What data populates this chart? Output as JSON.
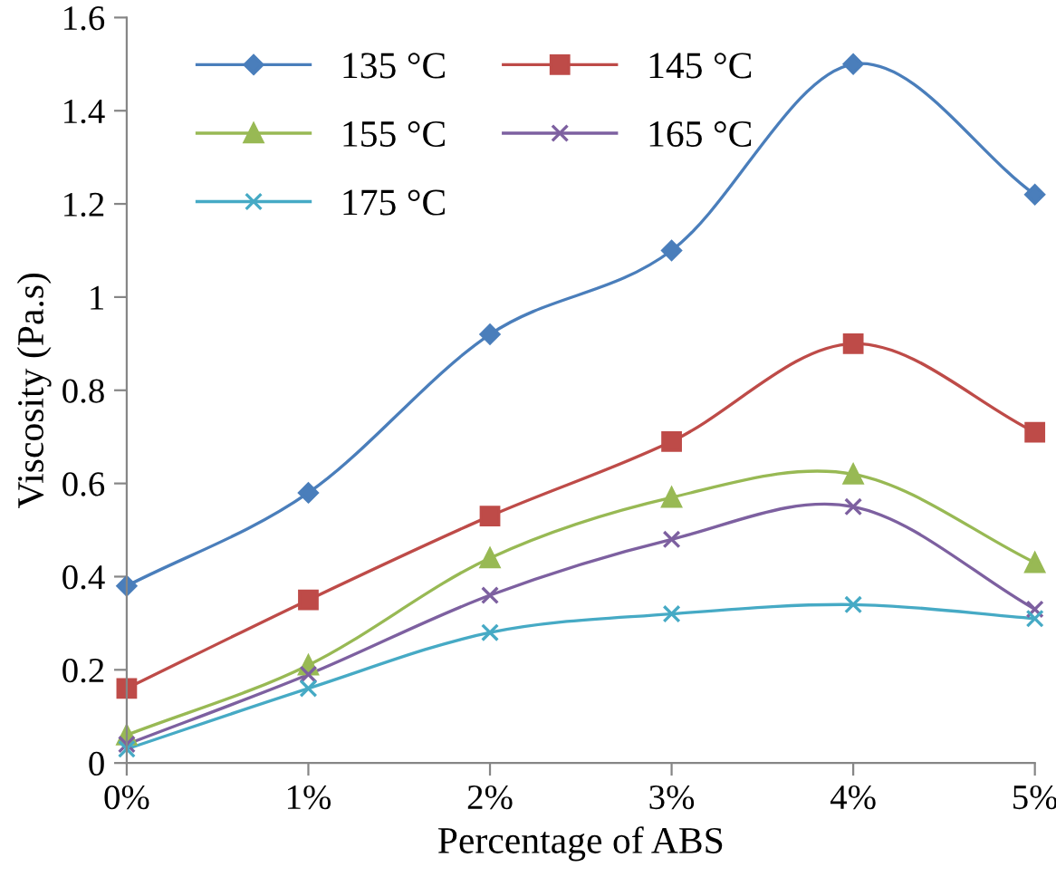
{
  "chart_data": {
    "type": "line",
    "xlabel": "Percentage of ABS",
    "ylabel": "Viscosity (Pa.s)",
    "categories": [
      "0%",
      "1%",
      "2%",
      "3%",
      "4%",
      "5%"
    ],
    "ylim": [
      0,
      1.6
    ],
    "yticks": [
      0,
      0.2,
      0.4,
      0.6,
      0.8,
      1,
      1.2,
      1.4,
      1.6
    ],
    "grid": false,
    "legend": "top left",
    "line_style": "solid",
    "series": [
      {
        "name": "135 °C",
        "color": "#4a7ebb",
        "marker": "diamond",
        "values": [
          0.38,
          0.58,
          0.92,
          1.1,
          1.5,
          1.22
        ]
      },
      {
        "name": "145 °C",
        "color": "#be4b48",
        "marker": "square",
        "values": [
          0.16,
          0.35,
          0.53,
          0.69,
          0.9,
          0.71
        ]
      },
      {
        "name": "155 °C",
        "color": "#98b954",
        "marker": "triangle",
        "values": [
          0.06,
          0.21,
          0.44,
          0.57,
          0.62,
          0.43
        ]
      },
      {
        "name": "165 °C",
        "color": "#7d60a0",
        "marker": "cross",
        "values": [
          0.04,
          0.19,
          0.36,
          0.48,
          0.55,
          0.33
        ]
      },
      {
        "name": "175 °C",
        "color": "#46aac5",
        "marker": "cross",
        "values": [
          0.03,
          0.16,
          0.28,
          0.32,
          0.34,
          0.31
        ]
      }
    ]
  }
}
